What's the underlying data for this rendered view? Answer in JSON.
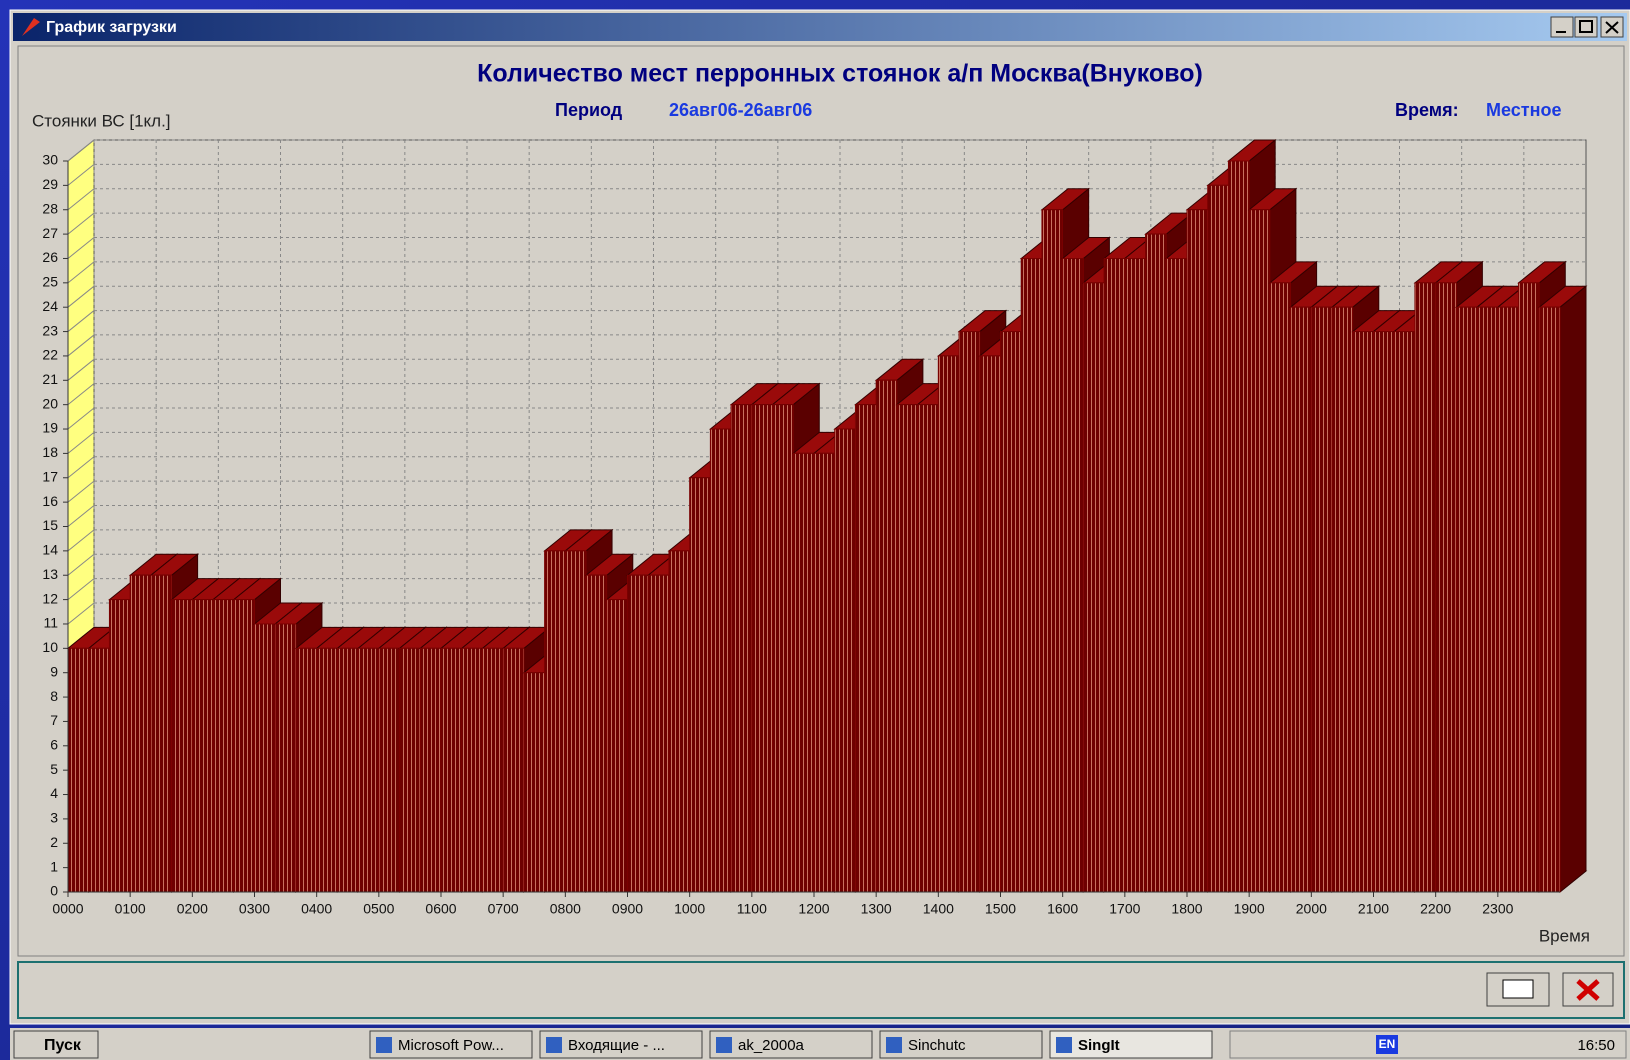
{
  "window": {
    "title": "График загрузки"
  },
  "chart_data": {
    "type": "bar",
    "title": "Количество мест перронных стоянок а/п Москва(Внуково)",
    "period_label": "Период",
    "period": "26авг06-26авг06",
    "time_label": "Время:",
    "time_zone": "Местное",
    "y_label": "Стоянки ВС [1кл.]",
    "x_label": "Время",
    "color": "#7a0000",
    "grid": true,
    "x": [
      0,
      20,
      40,
      60,
      80,
      100,
      120,
      140,
      160,
      180,
      200,
      220,
      240,
      260,
      280,
      300,
      320,
      340,
      360,
      380,
      400,
      420,
      440,
      460,
      480,
      500,
      520,
      540,
      560,
      580,
      600,
      620,
      640,
      660,
      680,
      700,
      720,
      740,
      760,
      780,
      800,
      820,
      840,
      860,
      880,
      900,
      920,
      940,
      960,
      980,
      1000,
      1020,
      1040,
      1060,
      1080,
      1100,
      1120,
      1140,
      1160,
      1180,
      1200,
      1220,
      1240,
      1260,
      1280,
      1300,
      1320,
      1340,
      1360,
      1380,
      1400,
      1420
    ],
    "values": [
      10,
      10,
      12,
      13,
      13,
      12,
      12,
      12,
      12,
      11,
      11,
      10,
      10,
      10,
      10,
      10,
      10,
      10,
      10,
      10,
      10,
      10,
      9,
      14,
      14,
      13,
      12,
      13,
      13,
      14,
      17,
      19,
      20,
      20,
      20,
      18,
      18,
      19,
      20,
      21,
      20,
      20,
      22,
      23,
      22,
      23,
      26,
      28,
      26,
      25,
      26,
      26,
      27,
      26,
      28,
      29,
      30,
      28,
      25,
      24,
      24,
      24,
      23,
      23,
      23,
      25,
      25,
      24,
      24,
      24,
      25,
      24
    ],
    "xlim": [
      0,
      1440
    ],
    "xticks": [
      {
        "value": 0,
        "label": "0000"
      },
      {
        "value": 60,
        "label": "0100"
      },
      {
        "value": 120,
        "label": "0200"
      },
      {
        "value": 180,
        "label": "0300"
      },
      {
        "value": 240,
        "label": "0400"
      },
      {
        "value": 300,
        "label": "0500"
      },
      {
        "value": 360,
        "label": "0600"
      },
      {
        "value": 420,
        "label": "0700"
      },
      {
        "value": 480,
        "label": "0800"
      },
      {
        "value": 540,
        "label": "0900"
      },
      {
        "value": 600,
        "label": "1000"
      },
      {
        "value": 660,
        "label": "1100"
      },
      {
        "value": 720,
        "label": "1200"
      },
      {
        "value": 780,
        "label": "1300"
      },
      {
        "value": 840,
        "label": "1400"
      },
      {
        "value": 900,
        "label": "1500"
      },
      {
        "value": 960,
        "label": "1600"
      },
      {
        "value": 1020,
        "label": "1700"
      },
      {
        "value": 1080,
        "label": "1800"
      },
      {
        "value": 1140,
        "label": "1900"
      },
      {
        "value": 1200,
        "label": "2000"
      },
      {
        "value": 1260,
        "label": "2100"
      },
      {
        "value": 1320,
        "label": "2200"
      },
      {
        "value": 1380,
        "label": "2300"
      }
    ],
    "ylim": [
      0,
      30
    ],
    "yticks": [
      0,
      1,
      2,
      3,
      4,
      5,
      6,
      7,
      8,
      9,
      10,
      11,
      12,
      13,
      14,
      15,
      16,
      17,
      18,
      19,
      20,
      21,
      22,
      23,
      24,
      25,
      26,
      27,
      28,
      29,
      30
    ]
  },
  "taskbar": {
    "start": "Пуск",
    "items": [
      "Microsoft Pow...",
      "Входящие - ...",
      "ak_2000a",
      "Sinchutc",
      "SingIt"
    ],
    "lang": "EN",
    "clock": "16:50"
  }
}
